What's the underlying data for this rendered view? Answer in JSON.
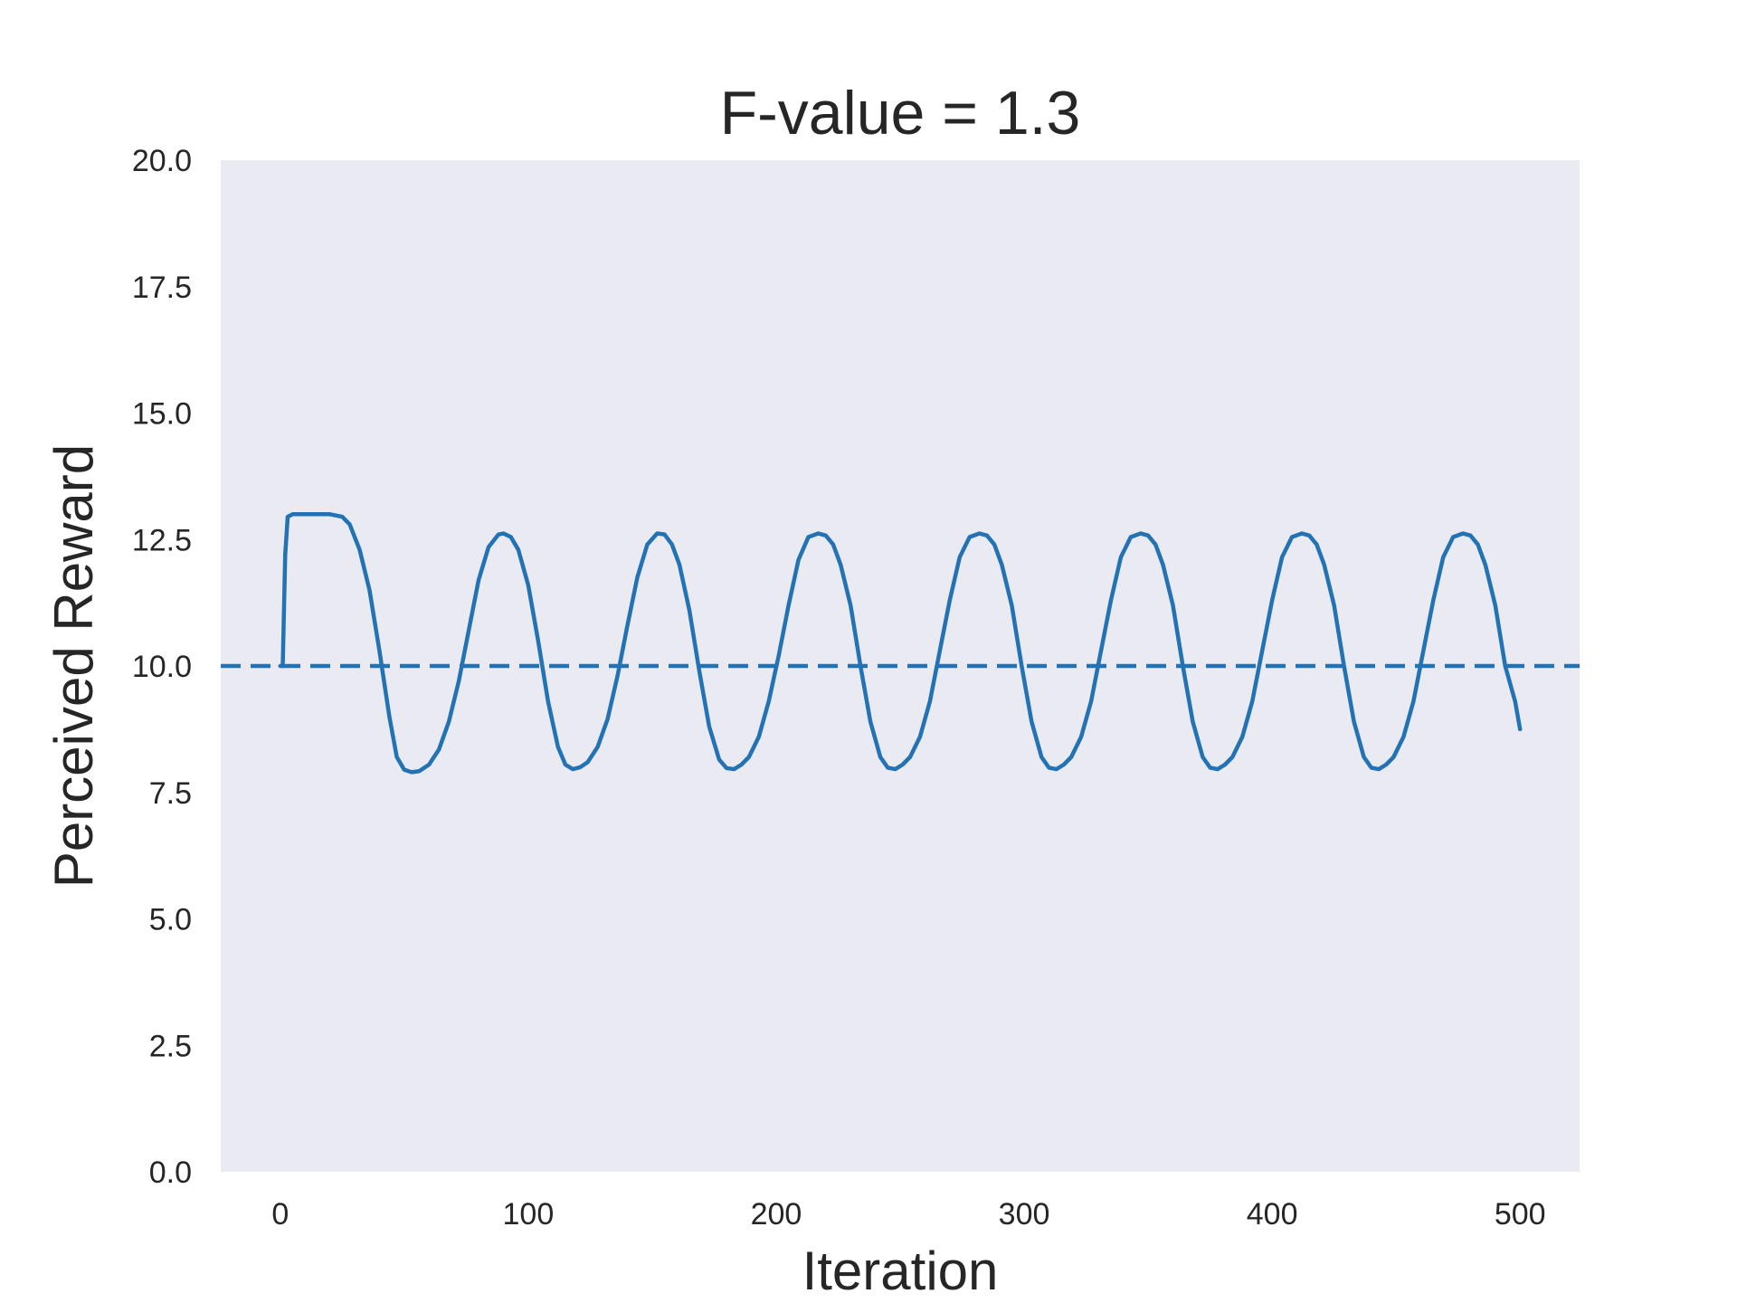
{
  "chart_data": {
    "type": "line",
    "title": "F-value = 1.3",
    "xlabel": "Iteration",
    "ylabel": "Perceived Reward",
    "xlim": [
      -24,
      524
    ],
    "ylim": [
      0,
      20
    ],
    "xticks": [
      0,
      100,
      200,
      300,
      400,
      500
    ],
    "yticks": [
      0.0,
      2.5,
      5.0,
      7.5,
      10.0,
      12.5,
      15.0,
      17.5,
      20.0
    ],
    "ytick_labels": [
      "0.0",
      "2.5",
      "5.0",
      "7.5",
      "10.0",
      "12.5",
      "15.0",
      "17.5",
      "20.0"
    ],
    "grid": false,
    "background": "#eaeaf2",
    "series": [
      {
        "style": "solid",
        "color": "#2272b4",
        "x": [
          0,
          1,
          2,
          3,
          5,
          10,
          15,
          20,
          25,
          28,
          32,
          36,
          40,
          44,
          47,
          50,
          53,
          56,
          60,
          64,
          68,
          72,
          76,
          80,
          84,
          88,
          90,
          93,
          96,
          100,
          104,
          108,
          112,
          115,
          118,
          121,
          124,
          128,
          132,
          136,
          140,
          144,
          148,
          152,
          155,
          158,
          161,
          165,
          169,
          173,
          177,
          180,
          183,
          186,
          189,
          193,
          197,
          201,
          205,
          209,
          213,
          217,
          220,
          223,
          226,
          230,
          234,
          238,
          242,
          245,
          248,
          251,
          254,
          258,
          262,
          266,
          270,
          274,
          278,
          282,
          285,
          288,
          291,
          295,
          299,
          303,
          307,
          310,
          313,
          316,
          319,
          323,
          327,
          331,
          335,
          339,
          343,
          347,
          350,
          353,
          356,
          360,
          364,
          368,
          372,
          375,
          378,
          381,
          384,
          388,
          392,
          396,
          400,
          404,
          408,
          412,
          415,
          418,
          421,
          425,
          429,
          433,
          437,
          440,
          443,
          446,
          449,
          453,
          457,
          461,
          465,
          469,
          473,
          477,
          480,
          483,
          486,
          490,
          494,
          498,
          500
        ],
        "y": [
          10.0,
          10.0,
          12.2,
          12.95,
          13.0,
          13.0,
          13.0,
          13.0,
          12.95,
          12.8,
          12.3,
          11.5,
          10.3,
          9.0,
          8.2,
          7.95,
          7.9,
          7.92,
          8.05,
          8.35,
          8.9,
          9.7,
          10.7,
          11.7,
          12.35,
          12.6,
          12.62,
          12.55,
          12.3,
          11.6,
          10.5,
          9.3,
          8.4,
          8.05,
          7.96,
          8.0,
          8.1,
          8.4,
          8.95,
          9.8,
          10.8,
          11.75,
          12.4,
          12.62,
          12.6,
          12.4,
          12.0,
          11.1,
          9.9,
          8.8,
          8.15,
          7.98,
          7.96,
          8.05,
          8.2,
          8.6,
          9.3,
          10.2,
          11.2,
          12.1,
          12.55,
          12.62,
          12.58,
          12.4,
          12.0,
          11.2,
          10.0,
          8.9,
          8.2,
          7.99,
          7.96,
          8.05,
          8.2,
          8.6,
          9.3,
          10.3,
          11.3,
          12.15,
          12.55,
          12.62,
          12.58,
          12.4,
          12.0,
          11.2,
          10.0,
          8.9,
          8.2,
          7.99,
          7.96,
          8.05,
          8.2,
          8.6,
          9.3,
          10.3,
          11.3,
          12.15,
          12.55,
          12.62,
          12.58,
          12.4,
          12.0,
          11.2,
          10.0,
          8.9,
          8.2,
          7.99,
          7.96,
          8.05,
          8.2,
          8.6,
          9.3,
          10.3,
          11.3,
          12.15,
          12.55,
          12.62,
          12.58,
          12.4,
          12.0,
          11.2,
          10.0,
          8.9,
          8.2,
          7.99,
          7.96,
          8.05,
          8.2,
          8.6,
          9.3,
          10.3,
          11.3,
          12.15,
          12.55,
          12.62,
          12.58,
          12.4,
          12.0,
          11.2,
          10.0,
          9.3,
          8.75
        ]
      },
      {
        "style": "dashed",
        "color": "#2272b4",
        "x": [
          -24,
          524
        ],
        "y": [
          10.0,
          10.0
        ]
      }
    ]
  }
}
